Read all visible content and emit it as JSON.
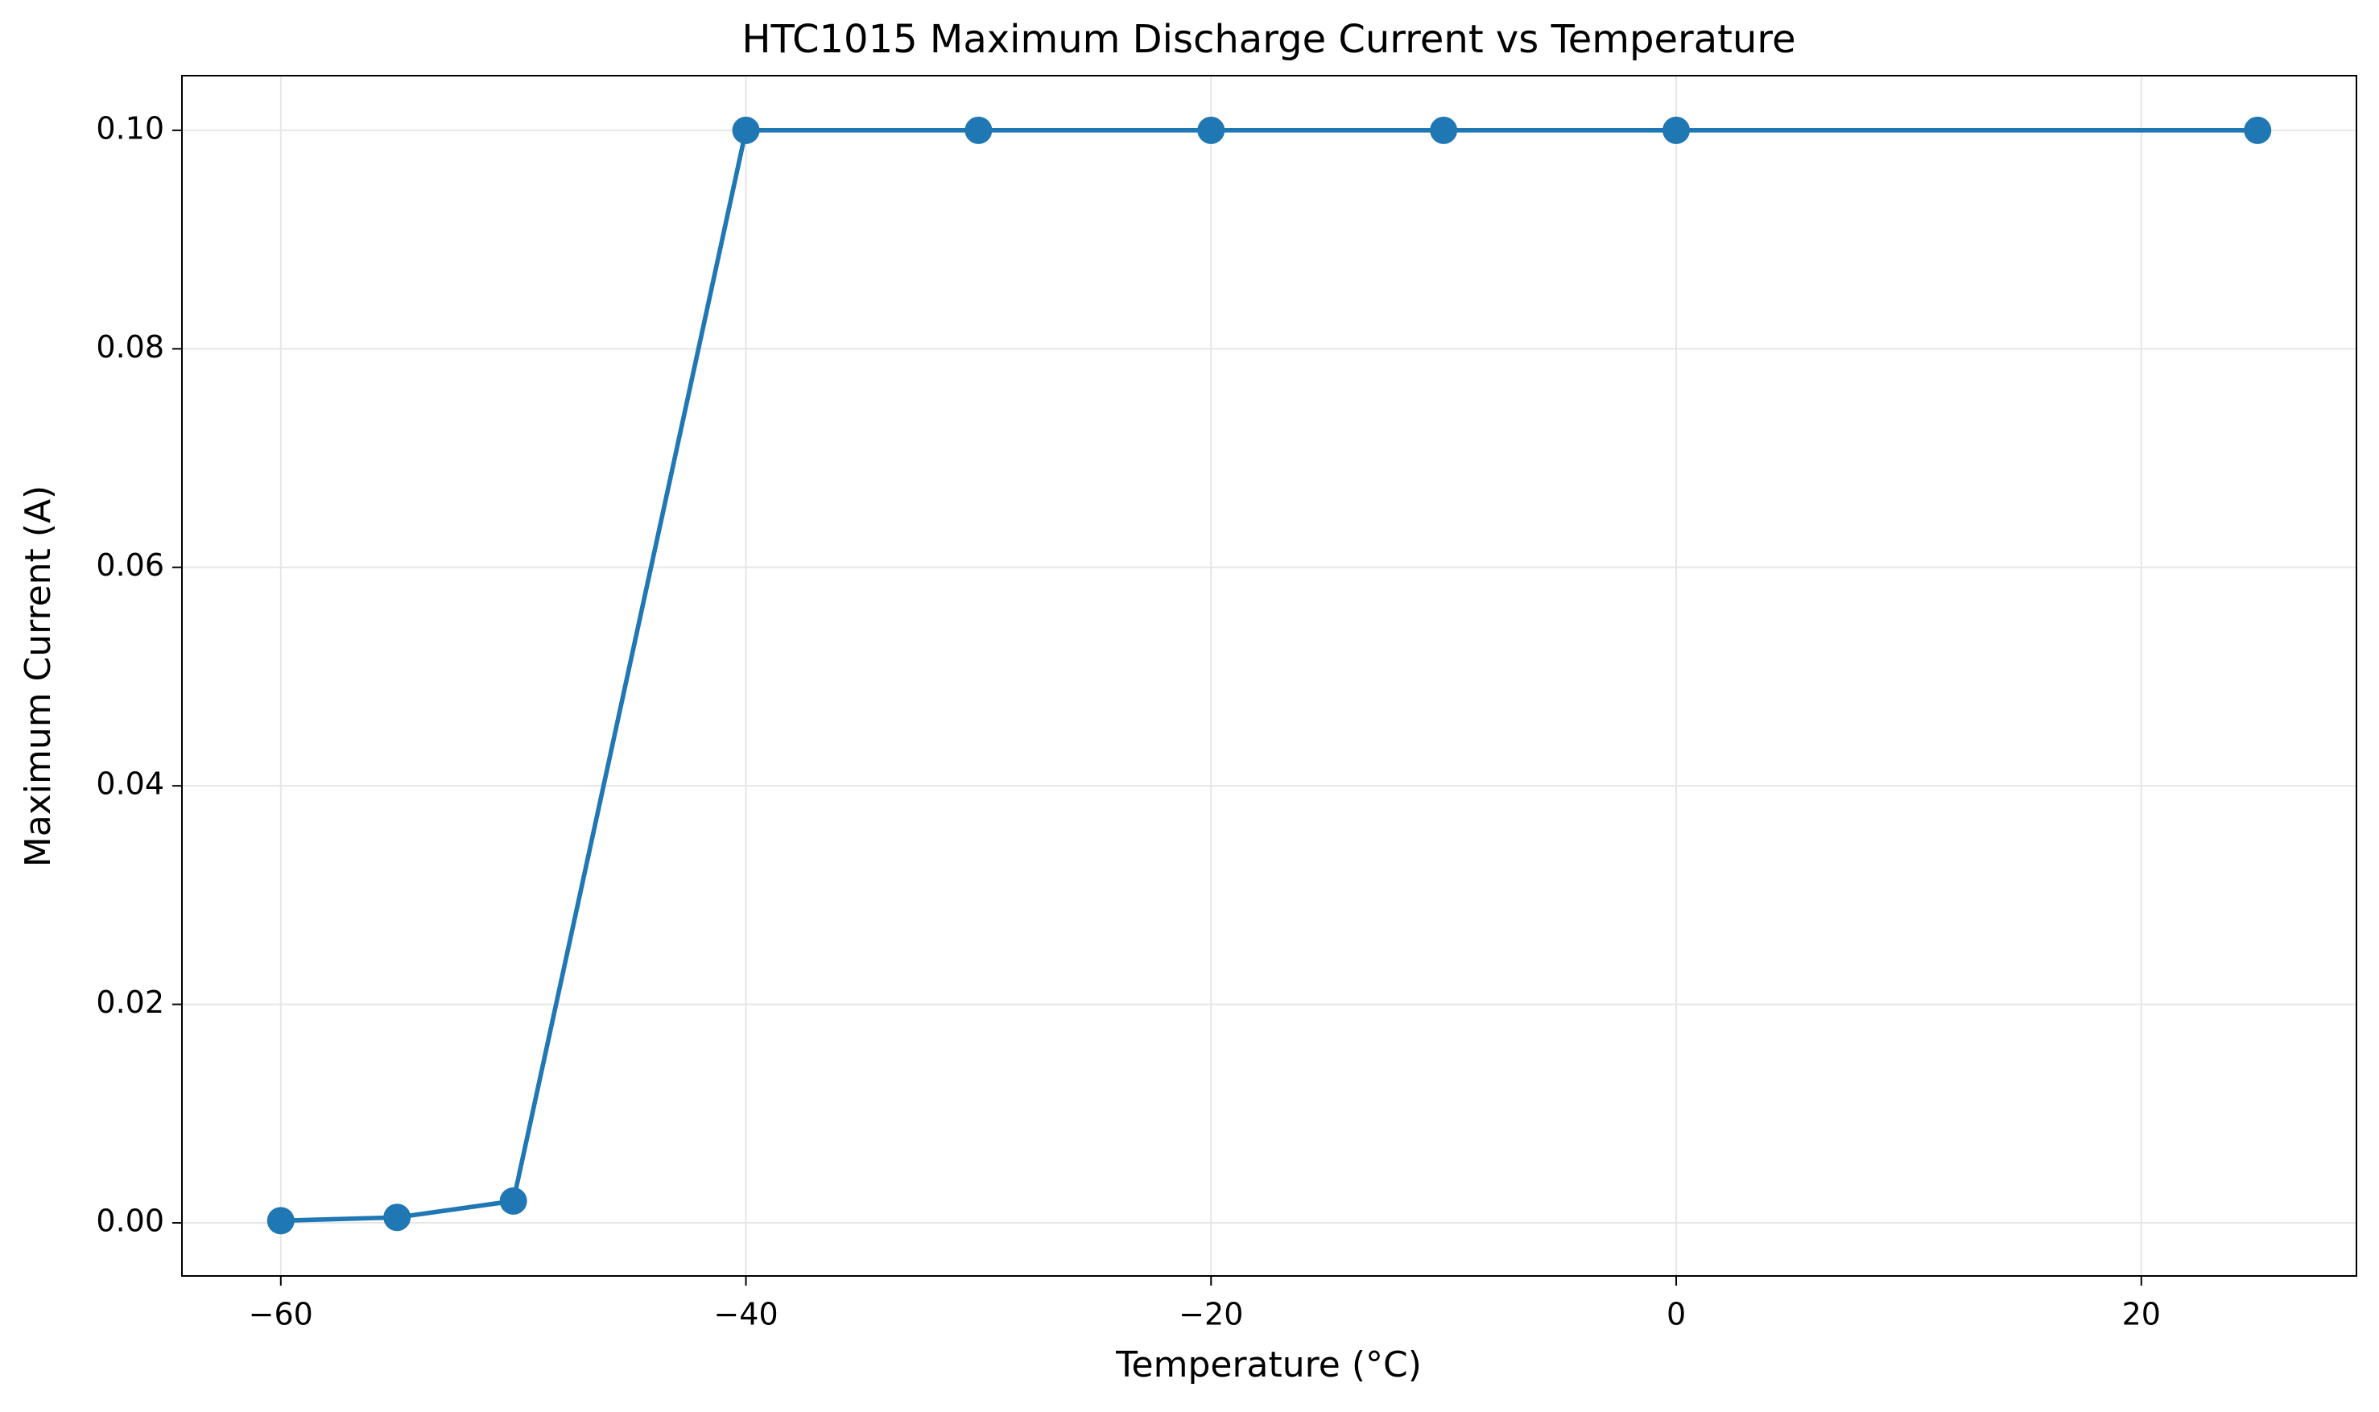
{
  "chart_data": {
    "type": "line",
    "title": "HTC1015 Maximum Discharge Current vs Temperature",
    "x_label": "Temperature (°C)",
    "y_label": "Maximum Current (A)",
    "x": [
      -60,
      -55,
      -50,
      -40,
      -30,
      -20,
      -10,
      0,
      25
    ],
    "series": [
      {
        "name": "Maximum Current",
        "color": "#1f77b4",
        "values": [
          0.0002,
          0.0005,
          0.002,
          0.1,
          0.1,
          0.1,
          0.1,
          0.1,
          0.1
        ]
      }
    ],
    "xlim": [
      -64.25,
      29.25
    ],
    "ylim": [
      -0.00486,
      0.105
    ],
    "xticks": [
      {
        "value": -60,
        "label": "−60"
      },
      {
        "value": -40,
        "label": "−40"
      },
      {
        "value": -20,
        "label": "−20"
      },
      0,
      20
    ],
    "yticks": [
      {
        "value": 0,
        "label": "0.00"
      },
      {
        "value": 0.02,
        "label": "0.02"
      },
      {
        "value": 0.04,
        "label": "0.04"
      },
      {
        "value": 0.06,
        "label": "0.06"
      },
      {
        "value": 0.08,
        "label": "0.08"
      },
      {
        "value": 0.1,
        "label": "0.10"
      }
    ],
    "grid": true,
    "legend": false
  }
}
